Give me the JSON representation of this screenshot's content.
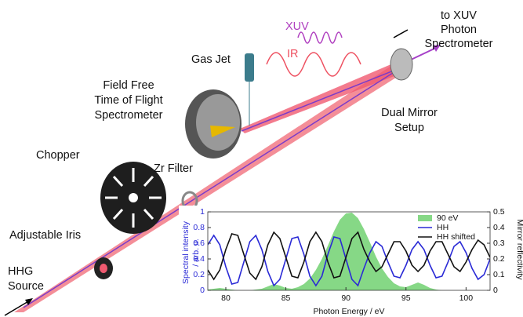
{
  "labels": {
    "xuv": "XUV",
    "ir": "IR",
    "to_spectrometer": [
      "to XUV",
      "Photon",
      "Spectrometer"
    ],
    "gas_jet": "Gas Jet",
    "tof": [
      "Field Free",
      "Time of Flight",
      "Spectrometer"
    ],
    "dual_mirror": [
      "Dual Mirror",
      "Setup"
    ],
    "chopper": "Chopper",
    "zr_filter": "Zr Filter",
    "iris": "Adjustable Iris",
    "hhg": [
      "HHG",
      "Source"
    ]
  },
  "chart_data": {
    "type": "line",
    "xlabel": "Photon Energy / eV",
    "ylabel": [
      "Spectral intensity",
      "/ arb. u."
    ],
    "y2label": "Mirror reflectivity",
    "x": [
      78.5,
      79,
      79.5,
      80,
      80.5,
      81,
      81.5,
      82,
      82.5,
      83,
      83.5,
      84,
      84.5,
      85,
      85.5,
      86,
      86.5,
      87,
      87.5,
      88,
      88.5,
      89,
      89.5,
      90,
      90.5,
      91,
      91.5,
      92,
      92.5,
      93,
      93.5,
      94,
      94.5,
      95,
      95.5,
      96,
      96.5,
      97,
      97.5,
      98,
      98.5,
      99,
      99.5,
      100,
      100.5,
      101,
      101.5,
      102
    ],
    "series": [
      {
        "name": "90 eV",
        "color": "#86d886",
        "style": "area",
        "axis": "y",
        "values": [
          0.01,
          0.02,
          0.03,
          0.02,
          0.01,
          0,
          0,
          0,
          0.01,
          0.02,
          0.05,
          0.08,
          0.06,
          0.03,
          0.02,
          0.04,
          0.08,
          0.15,
          0.26,
          0.4,
          0.57,
          0.75,
          0.9,
          0.98,
          0.99,
          0.92,
          0.78,
          0.61,
          0.43,
          0.28,
          0.17,
          0.09,
          0.05,
          0.04,
          0.07,
          0.1,
          0.07,
          0.03,
          0.01,
          0,
          0,
          0,
          0,
          0,
          0,
          0,
          0,
          0
        ]
      },
      {
        "name": "HH",
        "color": "#2a2ad6",
        "style": "line",
        "axis": "y2",
        "values": [
          0.29,
          0.35,
          0.29,
          0.15,
          0.04,
          0.05,
          0.18,
          0.31,
          0.35,
          0.26,
          0.12,
          0.03,
          0.07,
          0.2,
          0.33,
          0.34,
          0.23,
          0.09,
          0.03,
          0.09,
          0.23,
          0.34,
          0.33,
          0.2,
          0.07,
          0.03,
          0.14,
          0.24,
          0.31,
          0.28,
          0.18,
          0.09,
          0.08,
          0.16,
          0.26,
          0.31,
          0.26,
          0.16,
          0.08,
          0.09,
          0.18,
          0.28,
          0.31,
          0.24,
          0.14,
          0.07,
          0.1,
          0.2
        ]
      },
      {
        "name": "HH shifted",
        "color": "#111111",
        "style": "line",
        "axis": "y2",
        "values": [
          0.13,
          0.07,
          0.13,
          0.26,
          0.36,
          0.35,
          0.23,
          0.11,
          0.07,
          0.15,
          0.29,
          0.37,
          0.33,
          0.21,
          0.09,
          0.08,
          0.18,
          0.31,
          0.37,
          0.31,
          0.18,
          0.08,
          0.09,
          0.21,
          0.33,
          0.37,
          0.26,
          0.18,
          0.12,
          0.15,
          0.23,
          0.31,
          0.31,
          0.25,
          0.16,
          0.12,
          0.16,
          0.25,
          0.31,
          0.31,
          0.23,
          0.15,
          0.12,
          0.18,
          0.26,
          0.32,
          0.29,
          0.21
        ]
      }
    ],
    "xlim": [
      78.5,
      102
    ],
    "xticks": [
      80,
      85,
      90,
      95,
      100
    ],
    "ylim": [
      0,
      1
    ],
    "yticks": [
      0,
      0.2,
      0.4,
      0.6,
      0.8,
      1
    ],
    "y2lim": [
      0,
      0.5
    ],
    "y2ticks": [
      0,
      0.1,
      0.2,
      0.3,
      0.4,
      0.5
    ],
    "legend": "upper right"
  }
}
